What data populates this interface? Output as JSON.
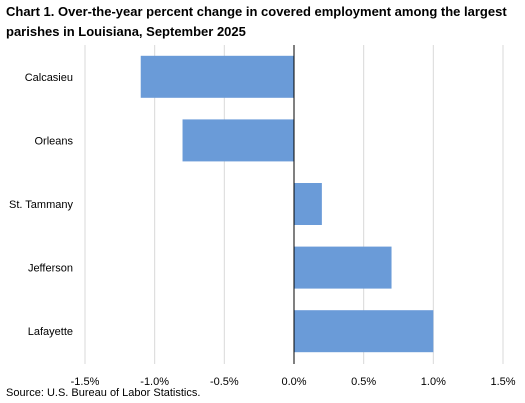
{
  "title": "Chart 1. Over-the-year percent change in covered employment among the largest parishes in Louisiana, September 2025",
  "source": "Source: U.S. Bureau of Labor Statistics.",
  "chart_data": {
    "type": "bar",
    "orientation": "horizontal",
    "categories": [
      "Calcasieu",
      "Orleans",
      "St. Tammany",
      "Jefferson",
      "Lafayette"
    ],
    "values": [
      -1.1,
      -0.8,
      0.2,
      0.7,
      1.0
    ],
    "unit": "%",
    "xlim": [
      -1.5,
      1.5
    ],
    "xticks": [
      -1.5,
      -1.0,
      -0.5,
      0.0,
      0.5,
      1.0,
      1.5
    ],
    "xtick_labels": [
      "-1.5%",
      "-1.0%",
      "-0.5%",
      "0.0%",
      "0.5%",
      "1.0%",
      "1.5%"
    ],
    "grid": "vertical",
    "legend": "none",
    "bar_color": "#6a9bd8",
    "grid_color": "#d9d9d9",
    "axis_color": "#000000"
  }
}
